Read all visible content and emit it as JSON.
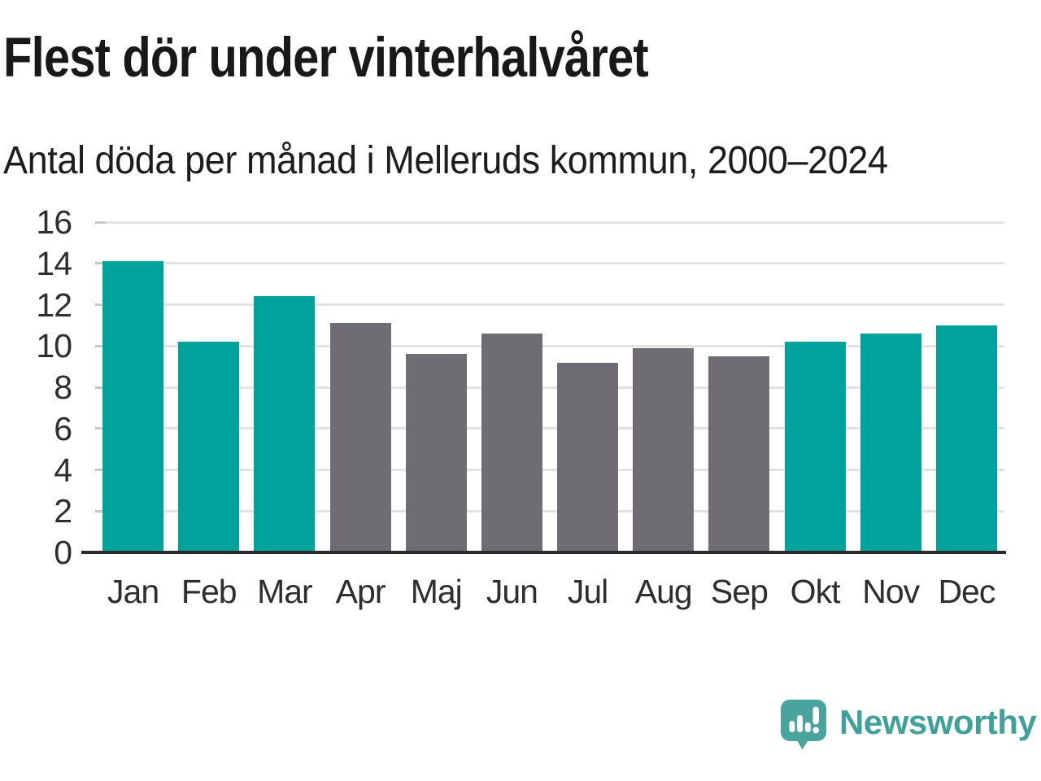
{
  "header": {
    "title": "Flest dör under vinterhalvåret",
    "subtitle": "Antal döda per månad i Melleruds kommun, 2000–2024"
  },
  "chart_data": {
    "type": "bar",
    "title": "Flest dör under vinterhalvåret",
    "subtitle": "Antal döda per månad i Melleruds kommun, 2000–2024",
    "categories": [
      "Jan",
      "Feb",
      "Mar",
      "Apr",
      "Maj",
      "Jun",
      "Jul",
      "Aug",
      "Sep",
      "Okt",
      "Nov",
      "Dec"
    ],
    "values": [
      14.1,
      10.2,
      12.4,
      11.1,
      9.6,
      10.6,
      9.2,
      9.9,
      9.5,
      10.2,
      10.6,
      11.0
    ],
    "bar_color_keys": [
      "teal",
      "teal",
      "teal",
      "gray",
      "gray",
      "gray",
      "gray",
      "gray",
      "gray",
      "teal",
      "teal",
      "teal"
    ],
    "palette": {
      "teal": "#00a39b",
      "gray": "#6f6d73"
    },
    "xlabel": "",
    "ylabel": "",
    "ylim": [
      0,
      16
    ],
    "yticks": [
      0,
      2,
      4,
      6,
      8,
      10,
      12,
      14,
      16
    ],
    "grid": true,
    "legend": false,
    "colors": {
      "gridline": "#e3e3e3",
      "tick": "#c9c9c9",
      "axis": "#2b2b2b",
      "tick_label": "#2e2e2e"
    }
  },
  "footer": {
    "brand": "Newsworthy",
    "logo_icon": "newsworthy-speech-bubble-barchart-icon",
    "brand_color": "#40a09a",
    "icon_color": "#4aa49e"
  }
}
